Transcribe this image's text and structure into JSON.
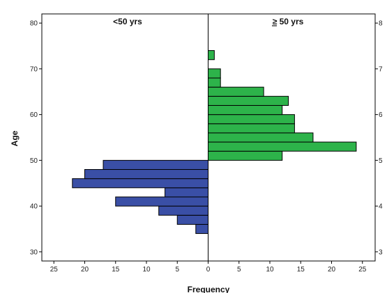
{
  "chart_data": {
    "type": "bar",
    "orientation": "horizontal-population-pyramid",
    "xlabel": "Frequency",
    "ylabel": "Age",
    "ylim": [
      28,
      82
    ],
    "xlim_left": [
      0,
      27
    ],
    "xlim_right": [
      0,
      27
    ],
    "yticks": [
      "30",
      "40",
      "50",
      "60",
      "70",
      "80"
    ],
    "right_yticks": [
      "3",
      "4",
      "5",
      "6",
      "7",
      "8"
    ],
    "xticks": [
      "25",
      "20",
      "15",
      "10",
      "5",
      "0",
      "5",
      "10",
      "15",
      "20",
      "25"
    ],
    "bin_width": 2,
    "series": [
      {
        "name": "<50 yrs",
        "side": "left",
        "color": "#3a4fa6",
        "bins": [
          {
            "age_start": 34,
            "value": 2
          },
          {
            "age_start": 36,
            "value": 5
          },
          {
            "age_start": 38,
            "value": 8
          },
          {
            "age_start": 40,
            "value": 15
          },
          {
            "age_start": 42,
            "value": 7
          },
          {
            "age_start": 44,
            "value": 22
          },
          {
            "age_start": 46,
            "value": 20
          },
          {
            "age_start": 48,
            "value": 17
          }
        ]
      },
      {
        "name": "≥ 50 yrs",
        "side": "right",
        "color": "#2db34a",
        "bins": [
          {
            "age_start": 50,
            "value": 12
          },
          {
            "age_start": 52,
            "value": 24
          },
          {
            "age_start": 54,
            "value": 17
          },
          {
            "age_start": 56,
            "value": 14
          },
          {
            "age_start": 58,
            "value": 14
          },
          {
            "age_start": 60,
            "value": 12
          },
          {
            "age_start": 62,
            "value": 13
          },
          {
            "age_start": 64,
            "value": 9
          },
          {
            "age_start": 66,
            "value": 2
          },
          {
            "age_start": 68,
            "value": 2
          },
          {
            "age_start": 72,
            "value": 1
          }
        ]
      }
    ],
    "panel_labels": {
      "left": "<50 yrs",
      "right": "≥ 50 yrs"
    },
    "grid": false,
    "legend": "none"
  }
}
